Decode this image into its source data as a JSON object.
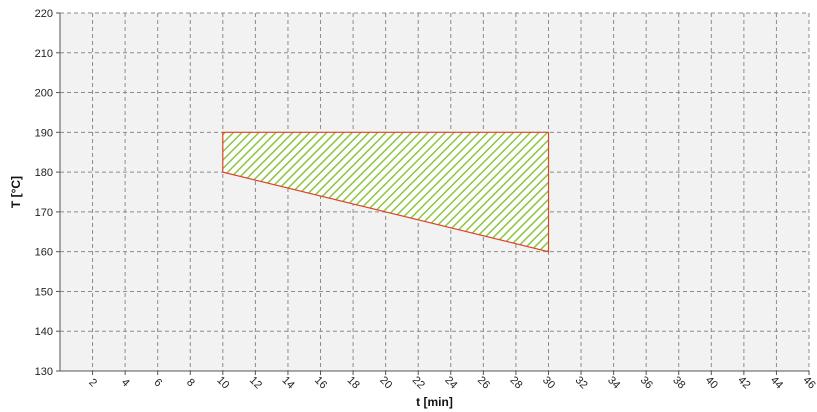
{
  "chart_data": {
    "type": "area",
    "title": "",
    "xlabel": "t [min]",
    "ylabel": "T [°C]",
    "xlim": [
      0,
      46
    ],
    "ylim": [
      130,
      220
    ],
    "xticks": [
      2,
      4,
      6,
      8,
      10,
      12,
      14,
      16,
      18,
      20,
      22,
      24,
      26,
      28,
      30,
      32,
      34,
      36,
      38,
      40,
      42,
      44,
      46
    ],
    "xtick_labels": [
      "2",
      "4",
      "6",
      "8",
      "10",
      "12",
      "14",
      "16",
      "18",
      "20",
      "22",
      "24",
      "26",
      "28",
      "30",
      "32",
      "34",
      "36",
      "38",
      "40",
      "42",
      "44",
      "46"
    ],
    "yticks": [
      130,
      140,
      150,
      160,
      170,
      180,
      190,
      200,
      210,
      220
    ],
    "ytick_labels": [
      "130",
      "140",
      "150",
      "160",
      "170",
      "180",
      "190",
      "200",
      "210",
      "220"
    ],
    "grid": true,
    "legend": "none",
    "polygon": {
      "points": [
        {
          "x": 10,
          "y": 180
        },
        {
          "x": 10,
          "y": 190
        },
        {
          "x": 30,
          "y": 190
        },
        {
          "x": 30,
          "y": 160
        }
      ],
      "fill": "hatched",
      "hatch_color": "#8cc63f",
      "edge_color": "#e0442a"
    },
    "colors": {
      "plot_background": "#f2f2f2",
      "grid": "#8c8c8c",
      "axis": "#555555"
    }
  }
}
